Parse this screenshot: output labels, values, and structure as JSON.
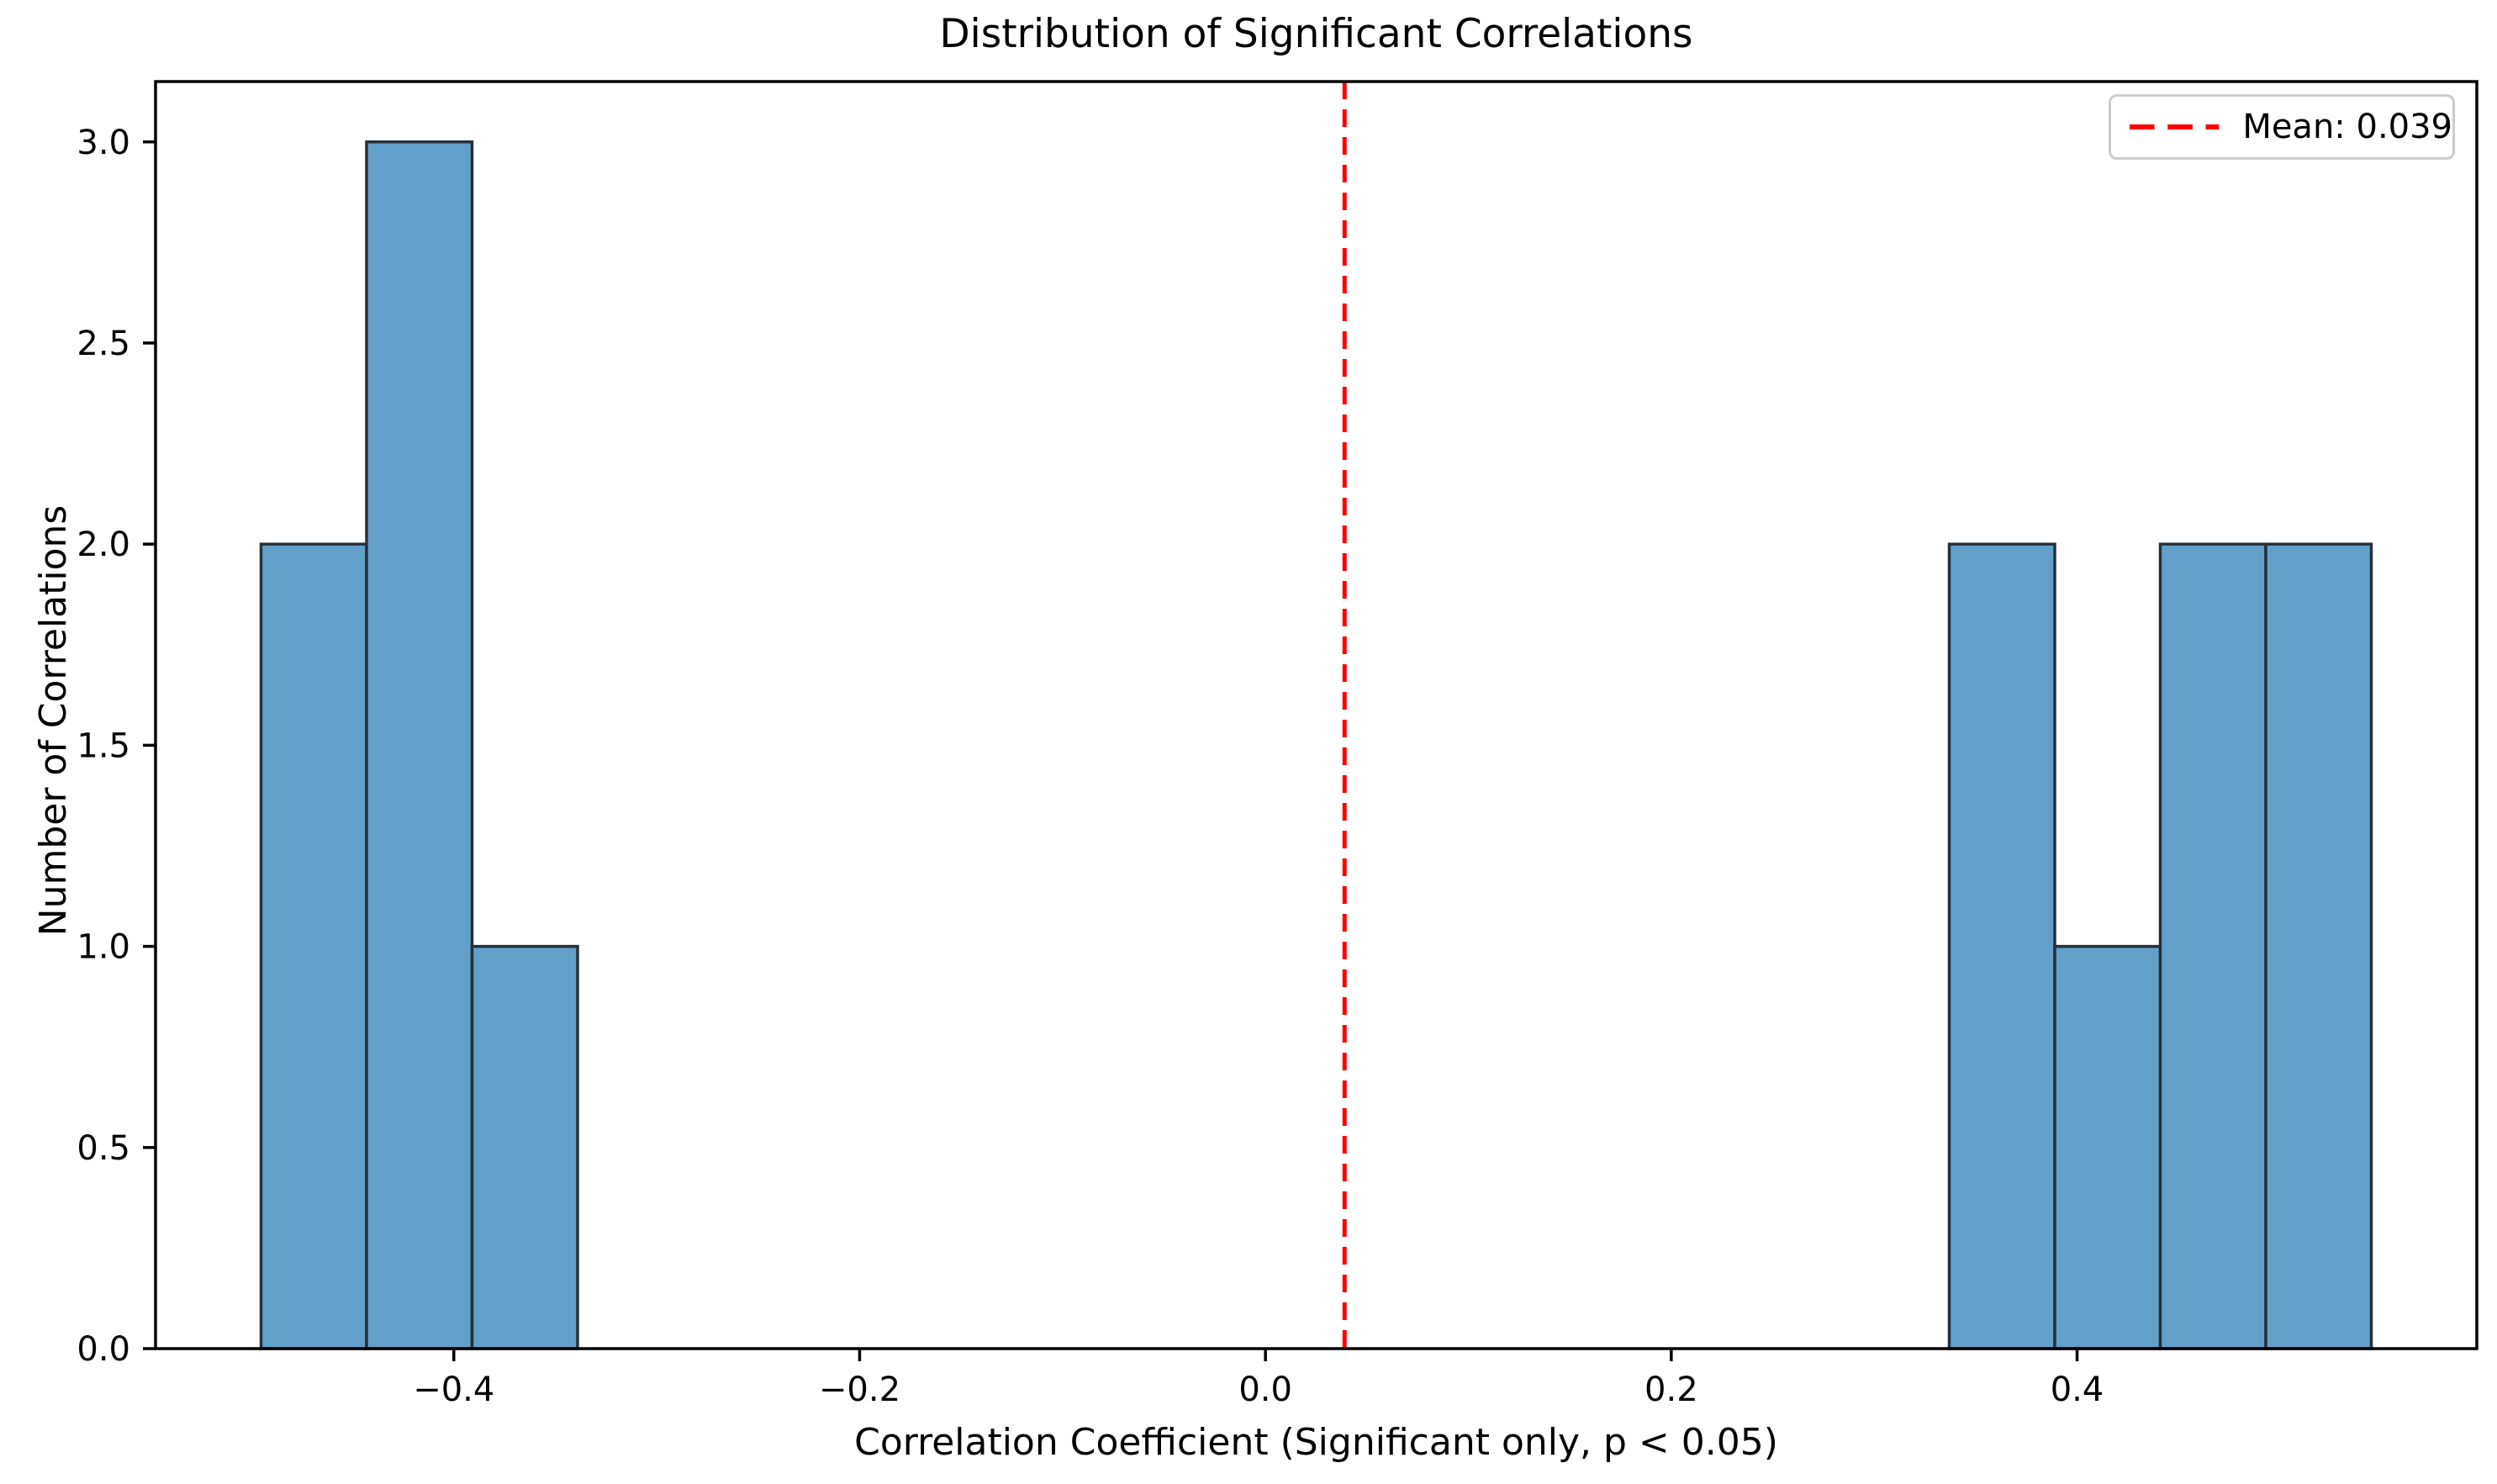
{
  "chart_data": {
    "type": "bar",
    "subtype": "histogram",
    "title": "Distribution of Significant Correlations",
    "xlabel": "Correlation Coefficient (Significant only, p < 0.05)",
    "ylabel": "Number of Correlations",
    "bin_edges": [
      -0.495,
      -0.443,
      -0.391,
      -0.339,
      -0.287,
      -0.235,
      -0.183,
      -0.131,
      -0.079,
      -0.027,
      0.025,
      0.077,
      0.129,
      0.181,
      0.233,
      0.285,
      0.337,
      0.389,
      0.441,
      0.493,
      0.545
    ],
    "counts": [
      2,
      3,
      1,
      0,
      0,
      0,
      0,
      0,
      0,
      0,
      0,
      0,
      0,
      0,
      0,
      0,
      2,
      1,
      2,
      2
    ],
    "total_correlations": 13,
    "xlim": [
      -0.547,
      0.597
    ],
    "ylim": [
      0,
      3.15
    ],
    "xticks": [
      -0.4,
      -0.2,
      0.0,
      0.2,
      0.4
    ],
    "xtick_labels": [
      "−0.4",
      "−0.2",
      "0.0",
      "0.2",
      "0.4"
    ],
    "yticks": [
      0.0,
      0.5,
      1.0,
      1.5,
      2.0,
      2.5,
      3.0
    ],
    "ytick_labels": [
      "0.0",
      "0.5",
      "1.0",
      "1.5",
      "2.0",
      "2.5",
      "3.0"
    ],
    "grid": false,
    "mean_line": {
      "value": 0.039,
      "style": "dashed"
    },
    "legend": {
      "position": "upper right",
      "entries": [
        {
          "label": "Mean: 0.039",
          "line_style": "dashed"
        }
      ]
    },
    "colors": {
      "bar_fill": "#62a0ca",
      "bar_edge": "#25313c",
      "mean_line": "#ff0000",
      "axis": "#000000",
      "legend_border": "#cccccc",
      "background": "#ffffff"
    }
  }
}
